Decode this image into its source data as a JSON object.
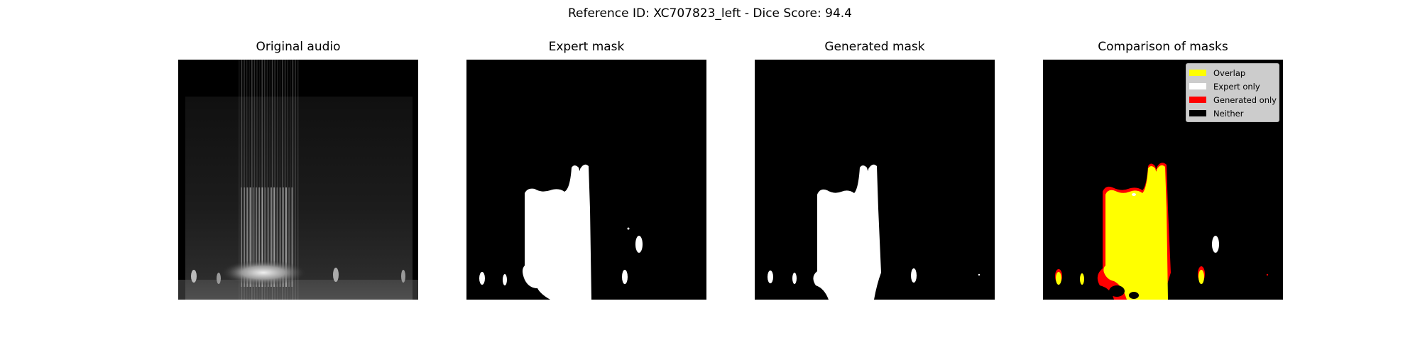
{
  "figure": {
    "suptitle": "Reference ID: XC707823_left - Dice Score: 94.4"
  },
  "panels": [
    {
      "title": "Original audio"
    },
    {
      "title": "Expert mask"
    },
    {
      "title": "Generated mask"
    },
    {
      "title": "Comparison of masks"
    }
  ],
  "legend": {
    "placement": "top-right",
    "items": [
      {
        "label": "Overlap",
        "color": "#ffff00"
      },
      {
        "label": "Expert only",
        "color": "#ffffff"
      },
      {
        "label": "Generated only",
        "color": "#ff0000"
      },
      {
        "label": "Neither",
        "color": "#000000"
      }
    ]
  },
  "chart_data": [
    {
      "type": "heatmap",
      "title": "Original audio",
      "xlabel": "",
      "ylabel": "",
      "axes": "off",
      "colormap": "gray"
    },
    {
      "type": "heatmap",
      "title": "Expert mask",
      "xlabel": "",
      "ylabel": "",
      "axes": "off",
      "colormap": "binary"
    },
    {
      "type": "heatmap",
      "title": "Generated mask",
      "xlabel": "",
      "ylabel": "",
      "axes": "off",
      "colormap": "binary"
    },
    {
      "type": "heatmap",
      "title": "Comparison of masks",
      "xlabel": "",
      "ylabel": "",
      "axes": "off",
      "dice_score": 94.4
    }
  ]
}
